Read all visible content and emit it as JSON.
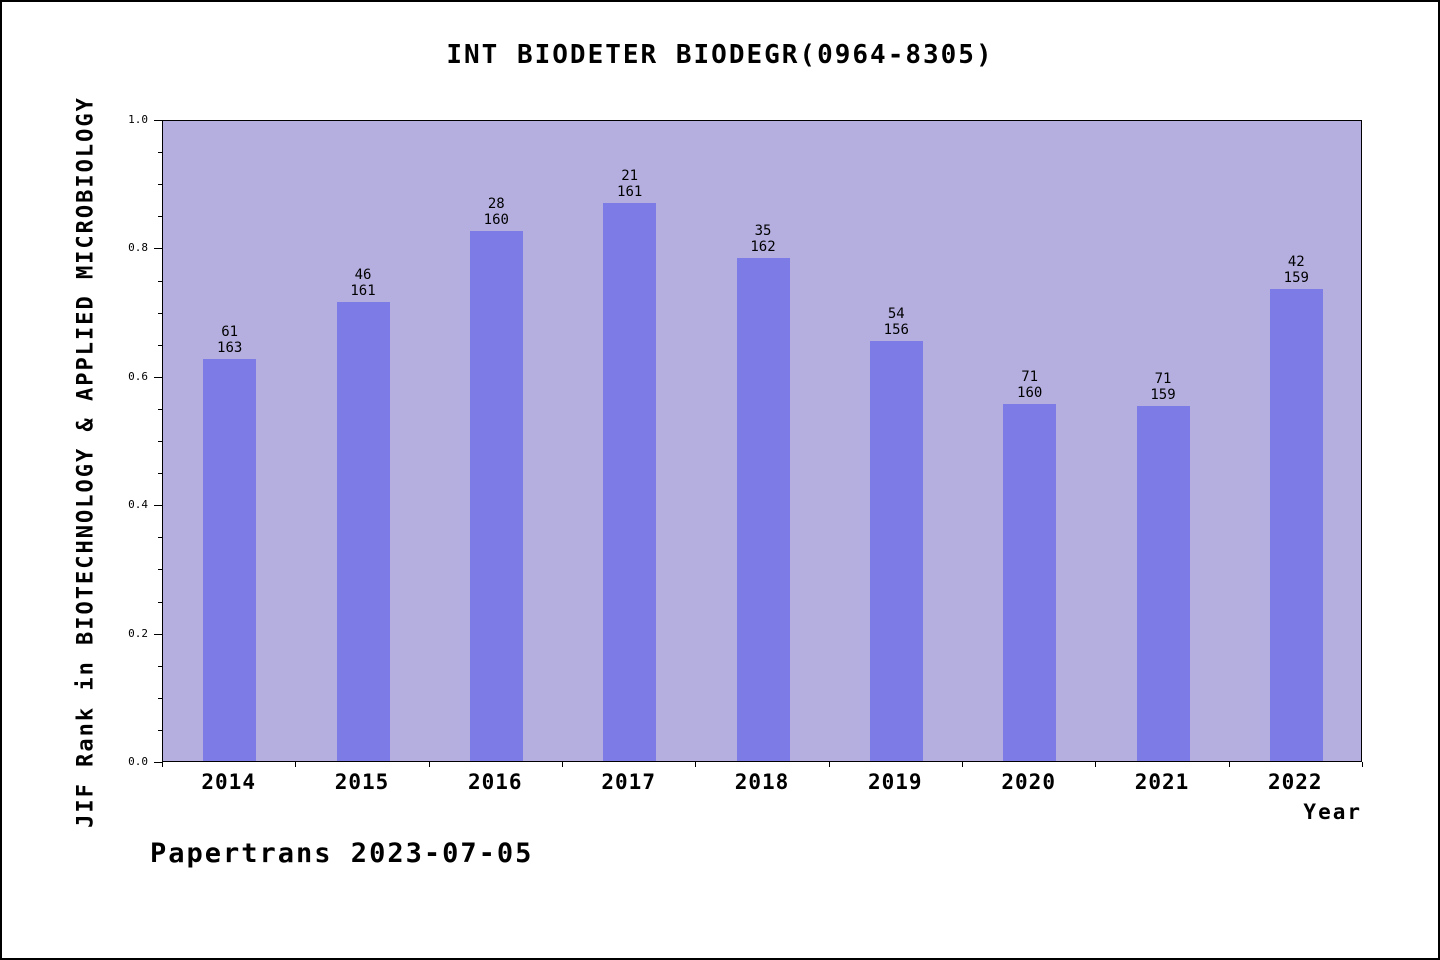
{
  "figure": {
    "footer": "Papertrans 2023-07-05"
  },
  "chart_data": {
    "type": "bar",
    "title": "INT BIODETER BIODEGR(0964-8305)",
    "xlabel": "Year",
    "ylabel": "JIF Rank in BIOTECHNOLOGY & APPLIED MICROBIOLOGY",
    "ylim": [
      0.0,
      1.0
    ],
    "yticks": [
      "0.0",
      "0.2",
      "0.4",
      "0.6",
      "0.8",
      "1.0"
    ],
    "ytick_minor_step": 0.05,
    "grid": false,
    "legend_position": "none",
    "categories": [
      "2014",
      "2015",
      "2016",
      "2017",
      "2018",
      "2019",
      "2020",
      "2021",
      "2022"
    ],
    "values": [
      0.6258,
      0.7143,
      0.825,
      0.8696,
      0.784,
      0.6538,
      0.5563,
      0.5535,
      0.7358
    ],
    "bar_labels": [
      [
        "61",
        "163"
      ],
      [
        "46",
        "161"
      ],
      [
        "28",
        "160"
      ],
      [
        "21",
        "161"
      ],
      [
        "35",
        "162"
      ],
      [
        "54",
        "156"
      ],
      [
        "71",
        "160"
      ],
      [
        "71",
        "159"
      ],
      [
        "42",
        "159"
      ]
    ],
    "colors": {
      "bar": "#7d7ce6",
      "plot_background": "#b5afe0",
      "axis": "#000000",
      "text": "#000000",
      "figure_background": "#ffffff"
    }
  }
}
